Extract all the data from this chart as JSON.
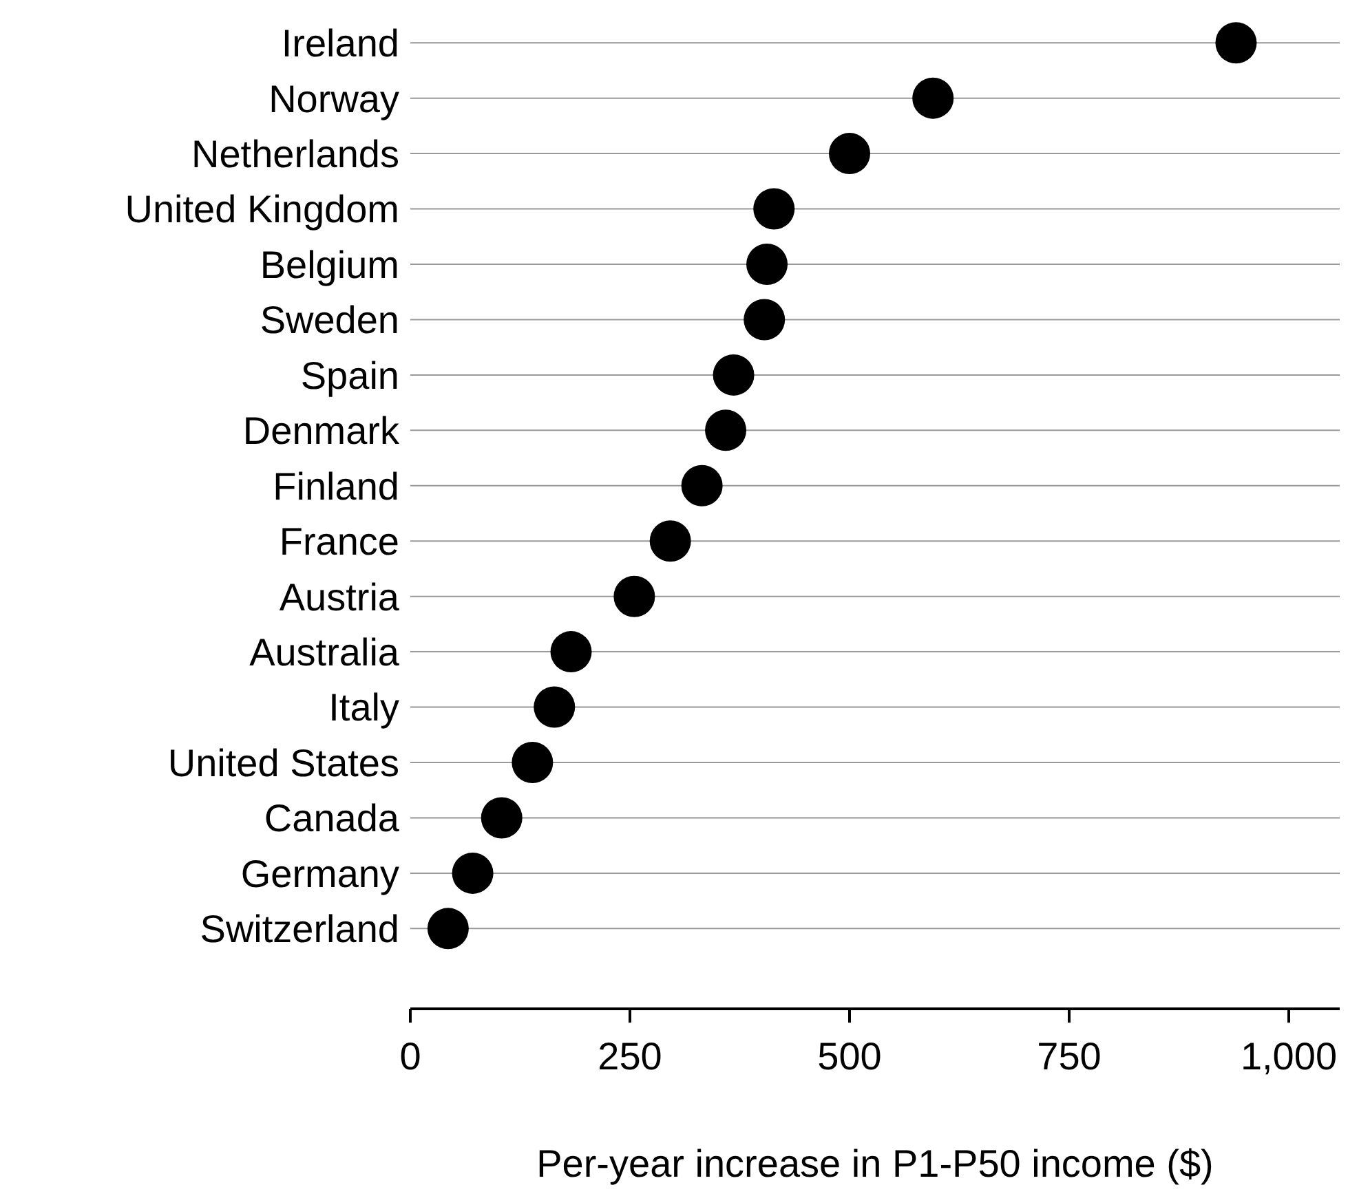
{
  "chart_data": {
    "type": "scatter",
    "orientation": "horizontal",
    "xlabel": "Per-year increase in P1-P50 income ($)",
    "categories": [
      "Ireland",
      "Norway",
      "Netherlands",
      "United Kingdom",
      "Belgium",
      "Sweden",
      "Spain",
      "Denmark",
      "Finland",
      "France",
      "Austria",
      "Australia",
      "Italy",
      "United States",
      "Canada",
      "Germany",
      "Switzerland"
    ],
    "values": [
      940,
      595,
      500,
      414,
      406,
      403,
      368,
      359,
      332,
      296,
      255,
      183,
      164,
      139,
      104,
      71,
      43
    ],
    "color": "#000000",
    "marker": "circle",
    "xlim": [
      0,
      1058
    ],
    "xticks": [
      0,
      250,
      500,
      750,
      {
        "value": 1000,
        "label": "1,000"
      }
    ],
    "grid": "y"
  }
}
